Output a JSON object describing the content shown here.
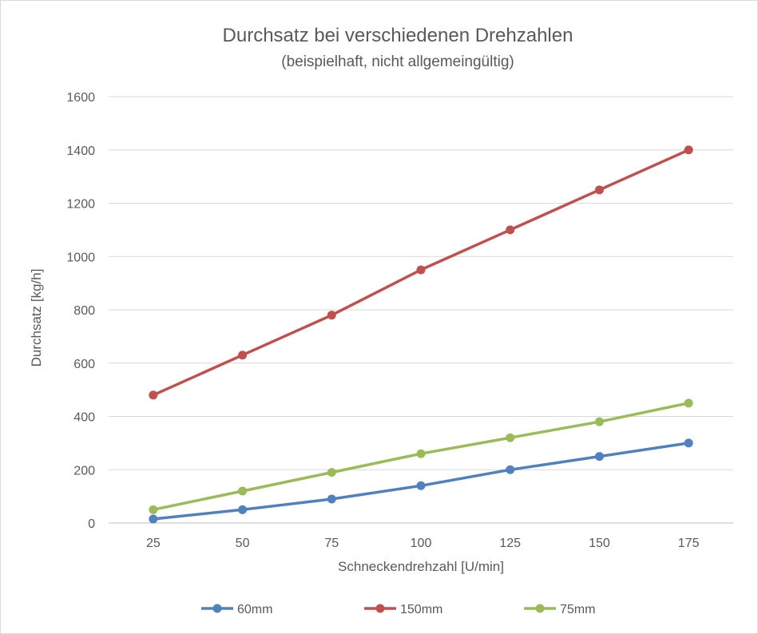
{
  "chart_data": {
    "type": "line",
    "title": "Durchsatz bei verschiedenen Drehzahlen",
    "subtitle": "(beispielhaft, nicht allgemeingültig)",
    "xlabel": "Schneckendrehzahl [U/min]",
    "ylabel": "Durchsatz [kg/h]",
    "x": [
      25,
      50,
      75,
      100,
      125,
      150,
      175
    ],
    "ylim": [
      0,
      1600
    ],
    "yticks": [
      0,
      200,
      400,
      600,
      800,
      1000,
      1200,
      1400,
      1600
    ],
    "grid": true,
    "legend_position": "bottom",
    "series": [
      {
        "name": "60mm",
        "color": "#4f81bd",
        "values": [
          15,
          50,
          90,
          140,
          200,
          250,
          300
        ]
      },
      {
        "name": "150mm",
        "color": "#c0504d",
        "values": [
          480,
          630,
          780,
          950,
          1100,
          1250,
          1400
        ]
      },
      {
        "name": "75mm",
        "color": "#9bbb59",
        "values": [
          50,
          120,
          190,
          260,
          320,
          380,
          450
        ]
      }
    ]
  }
}
